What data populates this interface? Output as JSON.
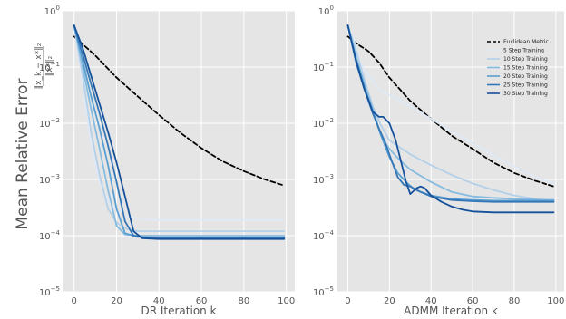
{
  "figure": {
    "ylabel": "Mean Relative Error",
    "ylabel_fraction_top": "‖x_k − x*‖₂",
    "ylabel_fraction_bottom": "‖x*‖₂"
  },
  "colors": {
    "euclidean": "#000000",
    "s5": "#dfe9f6",
    "s10": "#b4d0e8",
    "s15": "#86bbe0",
    "s20": "#5a9fd1",
    "s25": "#3576b6",
    "s30": "#14519a",
    "panel_bg": "#e5e5e5",
    "grid": "#ffffff"
  },
  "chart_data": [
    {
      "type": "line",
      "xlabel": "DR Iteration k",
      "ylabel": "Mean Relative Error",
      "yscale": "log",
      "xlim": [
        -5,
        104
      ],
      "ylim": [
        1e-05,
        1
      ],
      "xticks": [
        "0",
        "20",
        "40",
        "60",
        "80",
        "100"
      ],
      "yticks": [
        "10^-5",
        "10^-4",
        "10^-3",
        "10^-2",
        "10^-1",
        "10^0"
      ],
      "grid": true,
      "series": [
        {
          "name": "Euclidean Metric",
          "style": "dashed",
          "x": [
            0,
            10,
            20,
            30,
            40,
            50,
            60,
            70,
            80,
            90,
            99
          ],
          "y": [
            0.35,
            0.16,
            0.065,
            0.03,
            0.014,
            0.0068,
            0.0036,
            0.0021,
            0.0014,
            0.001,
            0.00078
          ]
        },
        {
          "name": "5 Step Training",
          "x": [
            0,
            4,
            8,
            12,
            16,
            20,
            25,
            30,
            40,
            60,
            80,
            99
          ],
          "y": [
            0.55,
            0.05,
            0.004,
            0.0009,
            0.00042,
            0.00028,
            0.00022,
            0.0002,
            0.00019,
            0.00019,
            0.00019,
            0.00019
          ]
        },
        {
          "name": "10 Step Training",
          "x": [
            0,
            4,
            8,
            12,
            16,
            20,
            25,
            30,
            40,
            60,
            80,
            99
          ],
          "y": [
            0.55,
            0.07,
            0.007,
            0.0012,
            0.0003,
            0.00017,
            0.00013,
            0.00012,
            0.00012,
            0.00012,
            0.00012,
            0.00012
          ]
        },
        {
          "name": "15 Step Training",
          "x": [
            0,
            4,
            8,
            12,
            16,
            20,
            24,
            30,
            40,
            60,
            80,
            99
          ],
          "y": [
            0.55,
            0.1,
            0.018,
            0.0035,
            0.00065,
            0.00015,
            0.000105,
            0.0001,
            0.0001,
            0.0001,
            0.0001,
            0.0001
          ]
        },
        {
          "name": "20 Step Training",
          "x": [
            0,
            4,
            8,
            12,
            16,
            20,
            24,
            30,
            40,
            60,
            80,
            99
          ],
          "y": [
            0.55,
            0.13,
            0.03,
            0.008,
            0.0018,
            0.0003,
            0.00011,
            9.5e-05,
            9.3e-05,
            9.3e-05,
            9.3e-05,
            9.3e-05
          ]
        },
        {
          "name": "25 Step Training",
          "x": [
            0,
            4,
            8,
            12,
            16,
            20,
            24,
            28,
            35,
            60,
            80,
            99
          ],
          "y": [
            0.55,
            0.17,
            0.05,
            0.015,
            0.004,
            0.0009,
            0.00018,
            0.0001,
            9e-05,
            9e-05,
            9e-05,
            9e-05
          ]
        },
        {
          "name": "30 Step Training",
          "x": [
            0,
            4,
            8,
            12,
            16,
            20,
            24,
            28,
            32,
            40,
            60,
            80,
            99
          ],
          "y": [
            0.55,
            0.22,
            0.07,
            0.022,
            0.007,
            0.002,
            0.0005,
            0.00012,
            9e-05,
            8.7e-05,
            8.7e-05,
            8.7e-05,
            8.7e-05
          ]
        }
      ]
    },
    {
      "type": "line",
      "xlabel": "ADMM Iteration k",
      "yscale": "log",
      "xlim": [
        -5,
        104
      ],
      "ylim": [
        1e-05,
        1
      ],
      "xticks": [
        "0",
        "20",
        "40",
        "60",
        "80",
        "100"
      ],
      "yticks": [
        "10^-5",
        "10^-4",
        "10^-3",
        "10^-2",
        "10^-1",
        "10^0"
      ],
      "grid": true,
      "legend": "top-right",
      "series": [
        {
          "name": "Euclidean Metric",
          "style": "dashed",
          "x": [
            0,
            5,
            10,
            15,
            20,
            30,
            40,
            50,
            60,
            70,
            80,
            90,
            99
          ],
          "y": [
            0.35,
            0.25,
            0.19,
            0.12,
            0.065,
            0.025,
            0.012,
            0.006,
            0.0035,
            0.002,
            0.0013,
            0.00095,
            0.00075
          ]
        },
        {
          "name": "5 Step Training",
          "x": [
            0,
            3,
            6,
            10,
            15,
            20,
            30,
            40,
            50,
            60,
            70,
            80,
            90,
            99
          ],
          "y": [
            0.55,
            0.3,
            0.12,
            0.07,
            0.04,
            0.032,
            0.02,
            0.012,
            0.0072,
            0.0044,
            0.0027,
            0.0017,
            0.0011,
            0.00085
          ]
        },
        {
          "name": "10 Step Training",
          "x": [
            0,
            4,
            8,
            12,
            16,
            20,
            30,
            40,
            50,
            60,
            70,
            80,
            90,
            99
          ],
          "y": [
            0.55,
            0.2,
            0.06,
            0.02,
            0.009,
            0.005,
            0.0028,
            0.0018,
            0.0012,
            0.00085,
            0.00065,
            0.00052,
            0.00045,
            0.0004
          ]
        },
        {
          "name": "15 Step Training",
          "x": [
            0,
            4,
            8,
            12,
            16,
            20,
            25,
            30,
            40,
            50,
            60,
            70,
            80,
            90,
            99
          ],
          "y": [
            0.55,
            0.15,
            0.05,
            0.018,
            0.006,
            0.0035,
            0.0022,
            0.0015,
            0.0009,
            0.0006,
            0.0005,
            0.00047,
            0.00045,
            0.00044,
            0.00043
          ]
        },
        {
          "name": "20 Step Training",
          "x": [
            0,
            4,
            8,
            12,
            16,
            20,
            24,
            28,
            32,
            40,
            50,
            60,
            70,
            80,
            90,
            99
          ],
          "y": [
            0.55,
            0.14,
            0.045,
            0.016,
            0.006,
            0.0025,
            0.0013,
            0.0009,
            0.00066,
            0.00052,
            0.00045,
            0.00043,
            0.00042,
            0.00042,
            0.00042,
            0.00042
          ]
        },
        {
          "name": "25 Step Training",
          "x": [
            0,
            4,
            8,
            12,
            15,
            18,
            21,
            24,
            27,
            30,
            35,
            40,
            50,
            60,
            70,
            80,
            90,
            99
          ],
          "y": [
            0.55,
            0.12,
            0.04,
            0.015,
            0.008,
            0.0045,
            0.0022,
            0.0011,
            0.0008,
            0.00075,
            0.0006,
            0.0005,
            0.00043,
            0.00041,
            0.0004,
            0.0004,
            0.0004,
            0.0004
          ]
        },
        {
          "name": "30 Step Training",
          "x": [
            0,
            4,
            8,
            12,
            15,
            17,
            20,
            23,
            26,
            28,
            30,
            33,
            35,
            37,
            40,
            45,
            50,
            55,
            60,
            70,
            80,
            90,
            99
          ],
          "y": [
            0.55,
            0.13,
            0.04,
            0.016,
            0.013,
            0.013,
            0.01,
            0.005,
            0.0018,
            0.0009,
            0.00055,
            0.0007,
            0.00075,
            0.0007,
            0.00052,
            0.0004,
            0.00033,
            0.00029,
            0.00027,
            0.00026,
            0.00026,
            0.00026,
            0.00026
          ]
        }
      ]
    }
  ]
}
